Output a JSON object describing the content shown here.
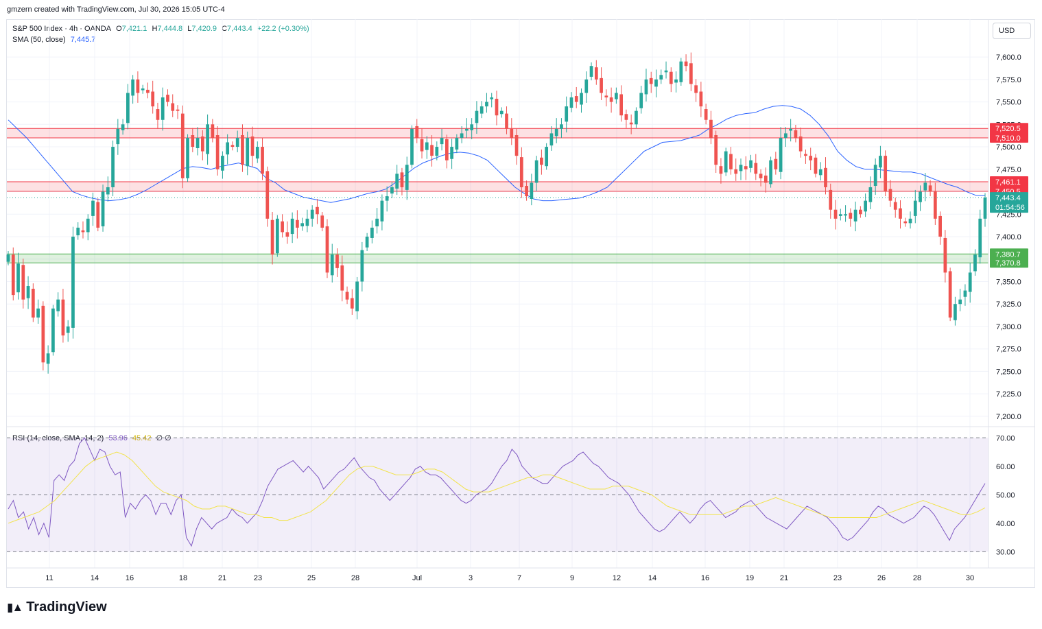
{
  "credit": "gmzern created with TradingView.com, Jul 30, 2026 15:05 UTC-4",
  "legend": {
    "symbol": "S&P 500 Index · 4h · OANDA",
    "o_label": "O",
    "o_value": "7,421.1",
    "h_label": "H",
    "h_value": "7,444.8",
    "l_label": "L",
    "l_value": "7,420.9",
    "c_label": "C",
    "c_value": "7,443.4",
    "change": "+22.2 (+0.30%)",
    "sma_label": "SMA (50, close)",
    "sma_value": "7,445.7",
    "rsi_label": "RSI (14, close, SMA, 14, 2)",
    "rsi_value": "53.96",
    "rsi_ma_value": "45.42",
    "rsi_extra": "∅  ∅"
  },
  "currency": "USD",
  "logo_text": "TradingView",
  "colors": {
    "up": "#26a69a",
    "down": "#ef5350",
    "sma": "#2962ff",
    "rsi": "#7e57c2",
    "rsi_ma": "#f2e34b",
    "resistance": "#f23645",
    "support": "#4caf50"
  },
  "chart_data": [
    {
      "type": "candlestick",
      "title": "S&P 500 Index · 4h · OANDA",
      "ylim": [
        7190,
        7610
      ],
      "yticks": [
        "7,200.0",
        "7,225.0",
        "7,250.0",
        "7,275.0",
        "7,300.0",
        "7,325.0",
        "7,350.0",
        "7,375.0",
        "7,400.0",
        "7,425.0",
        "7,450.0",
        "7,475.0",
        "7,500.0",
        "7,525.0",
        "7,550.0",
        "7,575.0",
        "7,600.0"
      ],
      "xticks": [
        "11",
        "14",
        "16",
        "18",
        "21",
        "23",
        "25",
        "28",
        "Jul",
        "3",
        "7",
        "9",
        "12",
        "14",
        "16",
        "19",
        "21",
        "23",
        "26",
        "28",
        "30"
      ],
      "closes": [
        7380,
        7335,
        7370,
        7330,
        7345,
        7310,
        7320,
        7260,
        7270,
        7320,
        7330,
        7290,
        7300,
        7400,
        7410,
        7405,
        7420,
        7440,
        7410,
        7450,
        7455,
        7500,
        7520,
        7525,
        7560,
        7575,
        7560,
        7565,
        7560,
        7545,
        7530,
        7555,
        7550,
        7540,
        7540,
        7465,
        7510,
        7500,
        7510,
        7495,
        7525,
        7510,
        7475,
        7490,
        7505,
        7500,
        7510,
        7480,
        7510,
        7490,
        7500,
        7470,
        7420,
        7380,
        7420,
        7405,
        7400,
        7420,
        7410,
        7415,
        7420,
        7430,
        7425,
        7410,
        7360,
        7380,
        7365,
        7340,
        7330,
        7320,
        7350,
        7385,
        7400,
        7410,
        7420,
        7440,
        7445,
        7455,
        7470,
        7455,
        7480,
        7520,
        7510,
        7495,
        7505,
        7490,
        7500,
        7510,
        7485,
        7500,
        7510,
        7515,
        7520,
        7525,
        7540,
        7545,
        7550,
        7555,
        7535,
        7540,
        7520,
        7510,
        7490,
        7455,
        7445,
        7460,
        7485,
        7480,
        7500,
        7515,
        7520,
        7525,
        7545,
        7555,
        7550,
        7560,
        7575,
        7590,
        7575,
        7560,
        7555,
        7550,
        7560,
        7535,
        7530,
        7525,
        7540,
        7560,
        7575,
        7570,
        7575,
        7580,
        7585,
        7570,
        7575,
        7595,
        7590,
        7570,
        7560,
        7545,
        7530,
        7510,
        7480,
        7470,
        7495,
        7475,
        7470,
        7480,
        7475,
        7485,
        7470,
        7465,
        7460,
        7485,
        7475,
        7510,
        7515,
        7520,
        7510,
        7495,
        7490,
        7485,
        7470,
        7475,
        7455,
        7430,
        7420,
        7425,
        7425,
        7420,
        7430,
        7425,
        7440,
        7455,
        7480,
        7490,
        7450,
        7440,
        7430,
        7420,
        7415,
        7420,
        7440,
        7450,
        7460,
        7450,
        7420,
        7400,
        7360,
        7310,
        7325,
        7330,
        7340,
        7360,
        7380,
        7420,
        7443.4
      ],
      "sma": [
        7530,
        7520,
        7510,
        7498,
        7486,
        7474,
        7462,
        7450,
        7446,
        7443,
        7441,
        7440,
        7441,
        7443,
        7447,
        7452,
        7458,
        7464,
        7470,
        7476,
        7478,
        7477,
        7475,
        7478,
        7480,
        7482,
        7479,
        7476,
        7465,
        7460,
        7452,
        7448,
        7444,
        7442,
        7440,
        7438,
        7440,
        7442,
        7445,
        7448,
        7450,
        7453,
        7460,
        7468,
        7476,
        7482,
        7486,
        7490,
        7493,
        7494,
        7493,
        7490,
        7485,
        7475,
        7465,
        7455,
        7448,
        7442,
        7440,
        7440,
        7441,
        7442,
        7443,
        7446,
        7450,
        7455,
        7465,
        7475,
        7485,
        7495,
        7500,
        7505,
        7506,
        7507,
        7510,
        7513,
        7520,
        7525,
        7531,
        7535,
        7537,
        7538,
        7542,
        7545,
        7546,
        7545,
        7542,
        7535,
        7525,
        7512,
        7495,
        7485,
        7478,
        7475,
        7475,
        7474,
        7473,
        7472,
        7472,
        7470,
        7466,
        7462,
        7458,
        7455,
        7450,
        7446,
        7445.7
      ],
      "sma_x_step": 2,
      "levels": [
        {
          "kind": "resistance",
          "high": 7520.5,
          "low": 7510.0,
          "labels": [
            "7,520.5",
            "7,510.0"
          ]
        },
        {
          "kind": "resistance",
          "high": 7461.1,
          "low": 7450.5,
          "labels": [
            "7,461.1",
            "7,450.5"
          ]
        },
        {
          "kind": "support",
          "high": 7380.7,
          "low": 7370.8,
          "labels": [
            "7,380.7",
            "7,370.8"
          ]
        }
      ],
      "last_price": "7,443.4",
      "countdown": "01:54:56"
    },
    {
      "type": "line",
      "title": "RSI (14, close, SMA, 14, 2)",
      "ylim": [
        25,
        72
      ],
      "yticks": [
        "30.00",
        "40.00",
        "50.00",
        "60.00",
        "70.00"
      ],
      "bands": [
        30,
        50,
        70
      ],
      "series": [
        {
          "name": "RSI",
          "values": [
            45,
            48,
            42,
            44,
            38,
            42,
            36,
            40,
            35,
            55,
            57,
            55,
            60,
            62,
            68,
            70,
            66,
            62,
            66,
            65,
            60,
            57,
            58,
            42,
            47,
            45,
            48,
            50,
            48,
            43,
            47,
            47,
            43,
            48,
            50,
            35,
            32,
            38,
            42,
            40,
            38,
            40,
            41,
            42,
            45,
            43,
            42,
            40,
            42,
            44,
            48,
            53,
            56,
            59,
            60,
            61,
            62,
            60,
            58,
            60,
            58,
            56,
            52,
            54,
            56,
            58,
            59,
            61,
            63,
            60,
            58,
            56,
            55,
            52,
            50,
            48,
            50,
            52,
            54,
            56,
            59,
            60,
            58,
            57,
            57,
            56,
            54,
            52,
            50,
            48,
            47,
            48,
            50,
            51,
            52,
            54,
            57,
            60,
            62,
            66,
            64,
            60,
            58,
            56,
            55,
            54,
            54,
            56,
            58,
            60,
            61,
            62,
            64,
            65,
            63,
            61,
            60,
            58,
            56,
            55,
            54,
            52,
            50,
            47,
            44,
            42,
            40,
            38,
            37,
            38,
            40,
            42,
            44,
            42,
            40,
            42,
            45,
            47,
            48,
            46,
            44,
            42,
            43,
            44,
            46,
            47,
            48,
            46,
            44,
            42,
            41,
            40,
            39,
            38,
            40,
            42,
            44,
            46,
            45,
            44,
            43,
            42,
            40,
            38,
            35,
            34,
            35,
            37,
            39,
            41,
            44,
            46,
            45,
            43,
            42,
            41,
            40,
            41,
            42,
            44,
            46,
            45,
            43,
            40,
            37,
            34,
            38,
            40,
            42,
            45,
            48,
            51,
            53.96
          ]
        },
        {
          "name": "RSI SMA",
          "values": [
            40,
            41,
            42,
            43,
            44,
            46,
            48,
            51,
            54,
            57,
            60,
            62,
            63,
            64,
            65,
            64,
            62,
            59,
            56,
            53,
            51,
            50,
            49,
            48,
            46,
            45,
            45,
            46,
            46,
            45,
            44,
            43,
            43,
            42,
            42,
            41,
            41,
            42,
            43,
            44,
            46,
            48,
            51,
            54,
            57,
            59,
            60,
            60,
            59,
            58,
            57,
            57,
            57,
            58,
            59,
            59,
            58,
            56,
            54,
            52,
            51,
            51,
            51,
            52,
            53,
            54,
            55,
            56,
            56,
            57,
            57,
            56,
            55,
            54,
            53,
            52,
            52,
            52,
            53,
            53,
            53,
            52,
            51,
            50,
            48,
            46,
            45,
            44,
            43,
            43,
            43,
            43,
            43,
            44,
            45,
            46,
            46,
            47,
            48,
            49,
            48,
            47,
            46,
            45,
            44,
            43,
            42,
            42,
            42,
            42,
            42,
            42,
            42,
            43,
            44,
            45,
            46,
            47,
            48,
            47,
            46,
            45,
            44,
            43,
            43,
            44,
            45.42
          ]
        }
      ]
    }
  ]
}
